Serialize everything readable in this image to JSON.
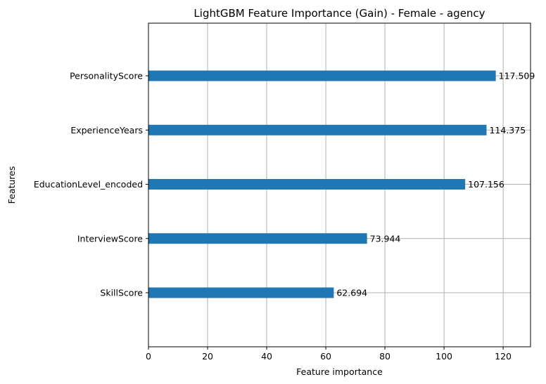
{
  "chart_data": {
    "type": "bar",
    "orientation": "horizontal",
    "title": "LightGBM Feature Importance (Gain) - Female - agency",
    "xlabel": "Feature importance",
    "ylabel": "Features",
    "categories": [
      "PersonalityScore",
      "ExperienceYears",
      "EducationLevel_encoded",
      "InterviewScore",
      "SkillScore"
    ],
    "values": [
      117.509,
      114.375,
      107.156,
      73.944,
      62.694
    ],
    "value_labels": [
      "117.509",
      "114.375",
      "107.156",
      "73.944",
      "62.694"
    ],
    "xlim": [
      0,
      129.26
    ],
    "xticks": [
      0,
      20,
      40,
      60,
      80,
      100,
      120
    ],
    "grid": true,
    "bar_color": "#1f77b4"
  }
}
